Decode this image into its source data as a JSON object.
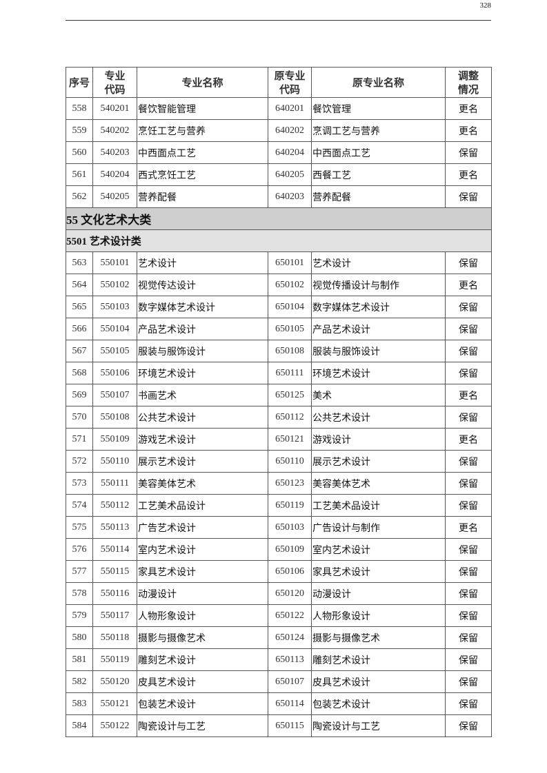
{
  "page_number": "328",
  "headers": {
    "seq": "序号",
    "code": [
      "专业",
      "代码"
    ],
    "name": "专业名称",
    "old_code": [
      "原专业",
      "代码"
    ],
    "old_name": "原专业名称",
    "status": [
      "调整",
      "情况"
    ]
  },
  "rows_top": [
    [
      "558",
      "540201",
      "餐饮智能管理",
      "640201",
      "餐饮管理",
      "更名"
    ],
    [
      "559",
      "540202",
      "烹饪工艺与营养",
      "640202",
      "烹调工艺与营养",
      "更名"
    ],
    [
      "560",
      "540203",
      "中西面点工艺",
      "640204",
      "中西面点工艺",
      "保留"
    ],
    [
      "561",
      "540204",
      "西式烹饪工艺",
      "640205",
      "西餐工艺",
      "更名"
    ],
    [
      "562",
      "540205",
      "营养配餐",
      "640203",
      "营养配餐",
      "保留"
    ]
  ],
  "category": "55 文化艺术大类",
  "subcategory": "5501 艺术设计类",
  "rows_bottom": [
    [
      "563",
      "550101",
      "艺术设计",
      "650101",
      "艺术设计",
      "保留"
    ],
    [
      "564",
      "550102",
      "视觉传达设计",
      "650102",
      "视觉传播设计与制作",
      "更名"
    ],
    [
      "565",
      "550103",
      "数字媒体艺术设计",
      "650104",
      "数字媒体艺术设计",
      "保留"
    ],
    [
      "566",
      "550104",
      "产品艺术设计",
      "650105",
      "产品艺术设计",
      "保留"
    ],
    [
      "567",
      "550105",
      "服装与服饰设计",
      "650108",
      "服装与服饰设计",
      "保留"
    ],
    [
      "568",
      "550106",
      "环境艺术设计",
      "650111",
      "环境艺术设计",
      "保留"
    ],
    [
      "569",
      "550107",
      "书画艺术",
      "650125",
      "美术",
      "更名"
    ],
    [
      "570",
      "550108",
      "公共艺术设计",
      "650112",
      "公共艺术设计",
      "保留"
    ],
    [
      "571",
      "550109",
      "游戏艺术设计",
      "650121",
      "游戏设计",
      "更名"
    ],
    [
      "572",
      "550110",
      "展示艺术设计",
      "650110",
      "展示艺术设计",
      "保留"
    ],
    [
      "573",
      "550111",
      "美容美体艺术",
      "650123",
      "美容美体艺术",
      "保留"
    ],
    [
      "574",
      "550112",
      "工艺美术品设计",
      "650119",
      "工艺美术品设计",
      "保留"
    ],
    [
      "575",
      "550113",
      "广告艺术设计",
      "650103",
      "广告设计与制作",
      "更名"
    ],
    [
      "576",
      "550114",
      "室内艺术设计",
      "650109",
      "室内艺术设计",
      "保留"
    ],
    [
      "577",
      "550115",
      "家具艺术设计",
      "650106",
      "家具艺术设计",
      "保留"
    ],
    [
      "578",
      "550116",
      "动漫设计",
      "650120",
      "动漫设计",
      "保留"
    ],
    [
      "579",
      "550117",
      "人物形象设计",
      "650122",
      "人物形象设计",
      "保留"
    ],
    [
      "580",
      "550118",
      "摄影与摄像艺术",
      "650124",
      "摄影与摄像艺术",
      "保留"
    ],
    [
      "581",
      "550119",
      "雕刻艺术设计",
      "650113",
      "雕刻艺术设计",
      "保留"
    ],
    [
      "582",
      "550120",
      "皮具艺术设计",
      "650107",
      "皮具艺术设计",
      "保留"
    ],
    [
      "583",
      "550121",
      "包装艺术设计",
      "650114",
      "包装艺术设计",
      "保留"
    ],
    [
      "584",
      "550122",
      "陶瓷设计与工艺",
      "650115",
      "陶瓷设计与工艺",
      "保留"
    ]
  ],
  "colors": {
    "category_bg": "#cfcfcf",
    "subcategory_bg": "#e2e2e2"
  }
}
